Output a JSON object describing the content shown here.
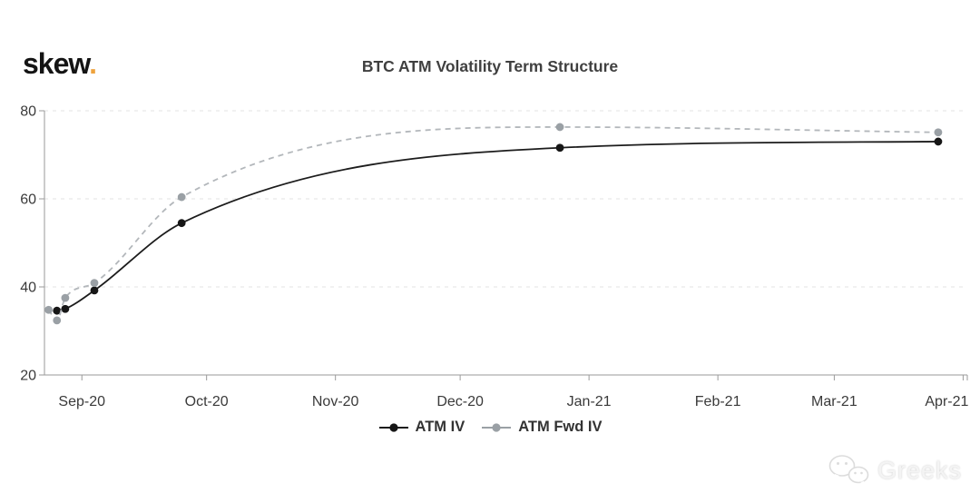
{
  "header": {
    "logo_text": "skew",
    "logo_dot": ".",
    "logo_dot_color": "#eea33e"
  },
  "watermark": {
    "icon": "wechat-icon",
    "text": "Greeks"
  },
  "chart_data": {
    "type": "line",
    "title": "BTC ATM Volatility Term Structure",
    "xlabel": "",
    "ylabel": "",
    "grid": "horizontal-dashed",
    "legend_position": "bottom-center",
    "colors": {
      "atm_iv": "#1c1c1c",
      "atm_fwd_iv_line": "#b3b7bb",
      "atm_fwd_iv_marker": "#9aa0a5",
      "gridline": "#e3e3e3",
      "axis": "#9a9a9a"
    },
    "x_axis": {
      "type": "time",
      "span_days": 222,
      "ticks": [
        {
          "label": "Sep-20",
          "day": 9
        },
        {
          "label": "Oct-20",
          "day": 39
        },
        {
          "label": "Nov-20",
          "day": 70
        },
        {
          "label": "Dec-20",
          "day": 100
        },
        {
          "label": "Jan-21",
          "day": 131
        },
        {
          "label": "Feb-21",
          "day": 162
        },
        {
          "label": "Mar-21",
          "day": 190
        },
        {
          "label": "Apr-21",
          "day": 221
        }
      ]
    },
    "y_axis": {
      "min": 20,
      "max": 80,
      "ticks": [
        "20",
        "40",
        "60",
        "80"
      ],
      "tick_values": [
        20,
        40,
        60,
        80
      ]
    },
    "series": [
      {
        "name": "ATM IV",
        "line_style": "solid",
        "color": "#1c1c1c",
        "marker_color": "#161616",
        "points": [
          {
            "date_est": "2020-08-26",
            "day": 3,
            "value": 34.6
          },
          {
            "date_est": "2020-08-28",
            "day": 5,
            "value": 35.0
          },
          {
            "date_est": "2020-09-04",
            "day": 12,
            "value": 39.2
          },
          {
            "date_est": "2020-09-25",
            "day": 33,
            "value": 54.5
          },
          {
            "date_est": "2020-12-25",
            "day": 124,
            "value": 71.6
          },
          {
            "date_est": "2021-03-26",
            "day": 215,
            "value": 73.0
          }
        ]
      },
      {
        "name": "ATM Fwd IV",
        "line_style": "dashed",
        "color": "#b3b7bb",
        "marker_color": "#9aa0a5",
        "points": [
          {
            "date_est": "2020-08-24",
            "day": 1,
            "value": 34.8
          },
          {
            "date_est": "2020-08-26",
            "day": 3,
            "value": 32.4
          },
          {
            "date_est": "2020-08-28",
            "day": 5,
            "value": 37.5
          },
          {
            "date_est": "2020-09-04",
            "day": 12,
            "value": 40.9
          },
          {
            "date_est": "2020-09-25",
            "day": 33,
            "value": 60.4
          },
          {
            "date_est": "2020-12-25",
            "day": 124,
            "value": 76.3
          },
          {
            "date_est": "2021-03-26",
            "day": 215,
            "value": 75.1
          }
        ]
      }
    ]
  }
}
